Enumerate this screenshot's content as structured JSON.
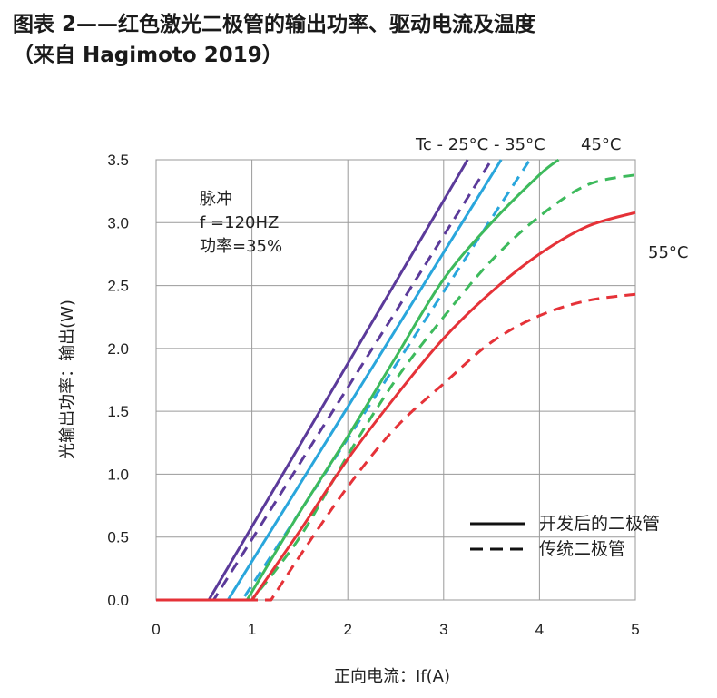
{
  "title": {
    "line1": "图表 2——红色激光二极管的输出功率、驱动电流及温度",
    "line2": "（来自 Hagimoto 2019）"
  },
  "annotations": {
    "pulse_line1": "脉冲",
    "pulse_line2": "f =120HZ",
    "pulse_line3": "功率=35%",
    "temp_top_left": "Tc - 25°C - 35°C",
    "temp_top_right": "45°C",
    "temp_right": "55°C"
  },
  "legend": {
    "solid_label": "开发后的二极管",
    "dashed_label": "传统二极管"
  },
  "chart_data": {
    "type": "line",
    "title": "图表 2——红色激光二极管的输出功率、驱动电流及温度",
    "xlabel": "正向电流：If(A)",
    "ylabel": "光输出功率：输出(W)",
    "xlim": [
      0,
      5
    ],
    "ylim": [
      0,
      3.5
    ],
    "x_ticks": [
      "0",
      "1",
      "2",
      "3",
      "4",
      "5"
    ],
    "y_ticks": [
      "0.0",
      "0.5",
      "1.0",
      "1.5",
      "2.0",
      "2.5",
      "3.0",
      "3.5"
    ],
    "grid": true,
    "legend_position": "bottom-right",
    "colors": {
      "25C": "#5b3a9a",
      "35C": "#29a6dc",
      "45C": "#3dba5c",
      "55C": "#e53238"
    },
    "series": [
      {
        "temp": "25°C",
        "style": "solid",
        "color": "#5b3a9a",
        "x": [
          0,
          0.55,
          3.25
        ],
        "y": [
          0,
          0,
          3.5
        ]
      },
      {
        "temp": "25°C",
        "style": "dashed",
        "color": "#5b3a9a",
        "x": [
          0,
          0.6,
          3.5
        ],
        "y": [
          0,
          0,
          3.5
        ]
      },
      {
        "temp": "35°C",
        "style": "solid",
        "color": "#29a6dc",
        "x": [
          0,
          0.75,
          3.6
        ],
        "y": [
          0,
          0,
          3.5
        ]
      },
      {
        "temp": "35°C",
        "style": "dashed",
        "color": "#29a6dc",
        "x": [
          0,
          0.9,
          3.9
        ],
        "y": [
          0,
          0,
          3.5
        ]
      },
      {
        "temp": "45°C",
        "style": "solid",
        "color": "#3dba5c",
        "x": [
          0,
          0.95,
          1.5,
          2.0,
          2.5,
          3.0,
          3.5,
          4.0,
          4.2
        ],
        "y": [
          0,
          0,
          0.7,
          1.3,
          1.93,
          2.55,
          3.0,
          3.38,
          3.5
        ]
      },
      {
        "temp": "45°C",
        "style": "dashed",
        "color": "#3dba5c",
        "x": [
          0,
          1.0,
          1.5,
          2.0,
          2.5,
          3.0,
          3.5,
          4.0,
          4.5,
          5.0
        ],
        "y": [
          0,
          0,
          0.5,
          1.15,
          1.75,
          2.25,
          2.7,
          3.05,
          3.3,
          3.38
        ]
      },
      {
        "temp": "55°C",
        "style": "solid",
        "color": "#e53238",
        "x": [
          0,
          1.0,
          1.5,
          2.0,
          2.5,
          3.0,
          3.5,
          4.0,
          4.5,
          5.0
        ],
        "y": [
          0,
          0,
          0.55,
          1.12,
          1.62,
          2.08,
          2.45,
          2.75,
          2.97,
          3.08
        ]
      },
      {
        "temp": "55°C",
        "style": "dashed",
        "color": "#e53238",
        "x": [
          0,
          1.2,
          1.5,
          2.0,
          2.5,
          3.0,
          3.5,
          4.0,
          4.5,
          5.0
        ],
        "y": [
          0,
          0,
          0.35,
          0.9,
          1.37,
          1.72,
          2.05,
          2.26,
          2.38,
          2.43
        ]
      }
    ]
  }
}
